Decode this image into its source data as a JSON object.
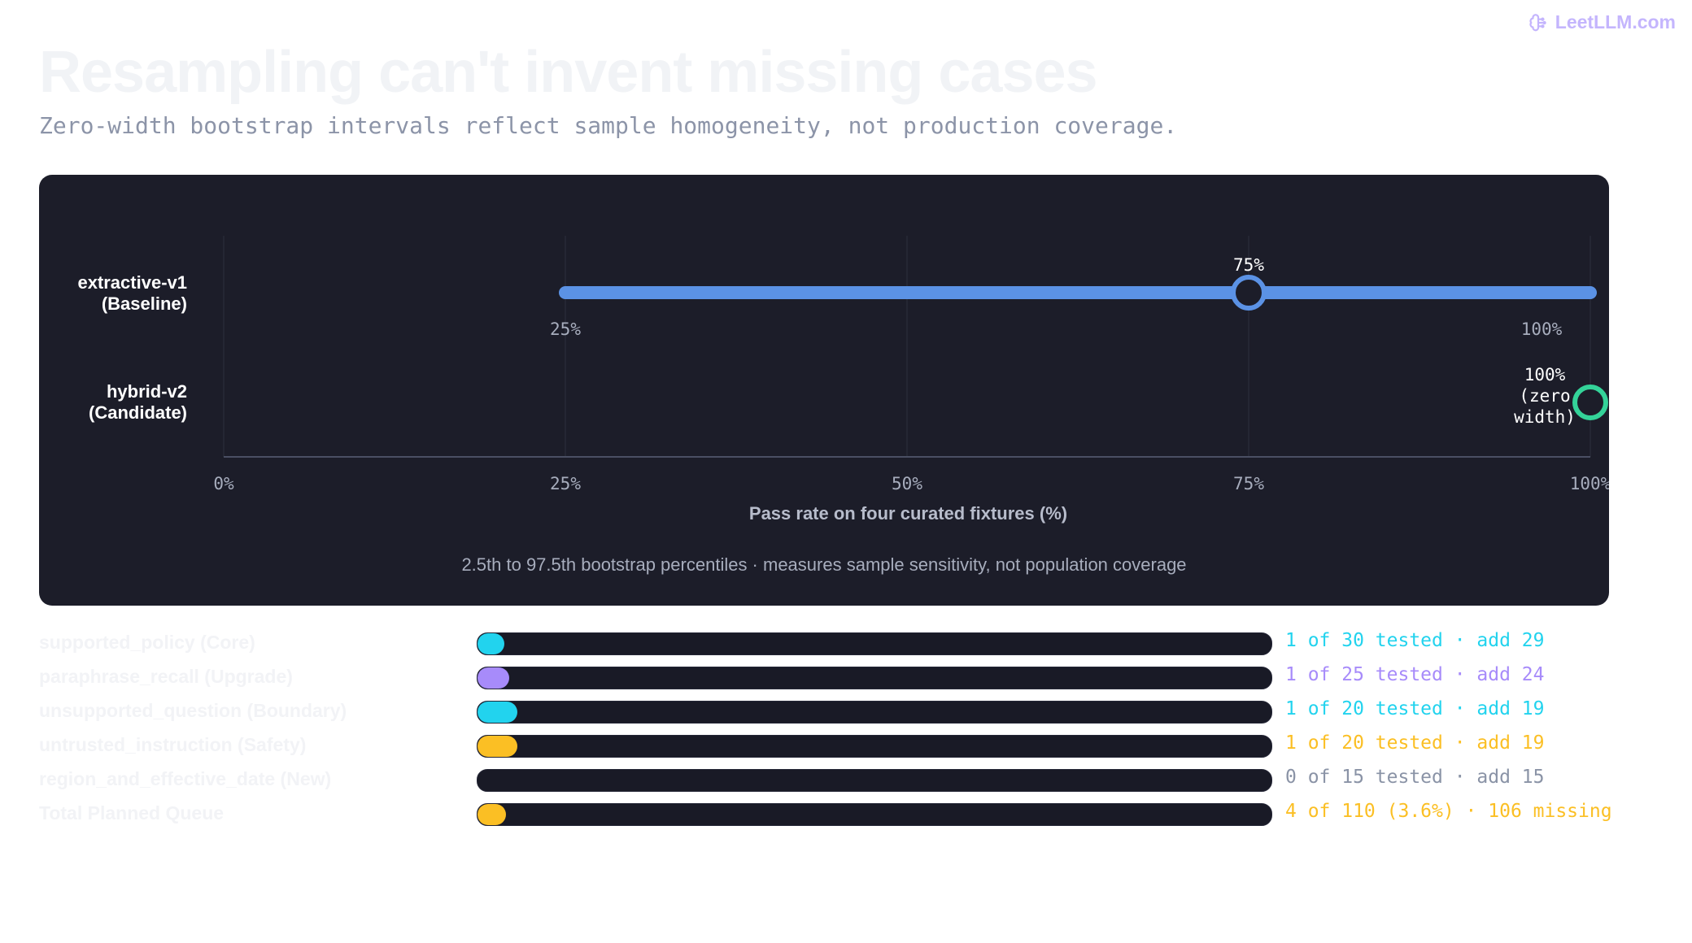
{
  "brand": {
    "name": "LeetLLM.com",
    "icon": "brain-icon",
    "color": "#c4b5fd"
  },
  "header": {
    "title": "Resampling can't invent missing cases",
    "subtitle": "Zero-width bootstrap intervals reflect sample homogeneity, not production coverage."
  },
  "chart_data": [
    {
      "type": "interval",
      "title": "",
      "xlabel": "Pass rate on four curated fixtures (%)",
      "xlim": [
        0,
        100
      ],
      "xticks": [
        "0%",
        "25%",
        "50%",
        "75%",
        "100%"
      ],
      "xtick_values": [
        0,
        25,
        50,
        75,
        100
      ],
      "grid": true,
      "rows": [
        {
          "label_line1": "extractive-v1",
          "label_line2": "(Baseline)",
          "point": 75,
          "point_label": "75%",
          "low": 25,
          "high": 100,
          "low_label": "25%",
          "high_label": "100%",
          "color": "#5b92e5"
        },
        {
          "label_line1": "hybrid-v2",
          "label_line2": "(Candidate)",
          "point": 100,
          "point_label_lines": [
            "100%",
            "(zero",
            "width)"
          ],
          "low": 100,
          "high": 100,
          "color": "#34d399"
        }
      ],
      "footnote": "2.5th to 97.5th  bootstrap percentiles · measures sample sensitivity, not population coverage"
    },
    {
      "type": "bar",
      "orientation": "horizontal",
      "categories": [
        "supported_policy (Core)",
        "paraphrase_recall (Upgrade)",
        "unsupported_question (Boundary)",
        "untrusted_instruction (Safety)",
        "region_and_effective_date (New)",
        "Total Planned Queue"
      ],
      "values": [
        1,
        1,
        1,
        1,
        0,
        4
      ],
      "totals": [
        30,
        25,
        20,
        20,
        15,
        110
      ],
      "notes": [
        "1 of 30 tested · add 29",
        "1 of 25 tested · add 24",
        "1 of 20 tested · add 19",
        "1 of 20 tested · add 19",
        "0 of 15 tested · add 15",
        "4 of 110 (3.6%) · 106 missing"
      ],
      "colors": [
        "#22d3ee",
        "#a78bfa",
        "#22d3ee",
        "#fbbf24",
        "#8a93a6",
        "#fbbf24"
      ]
    }
  ],
  "colors": {
    "panel": "#1c1d29",
    "grid": "#2b2e3d",
    "track": "#191a26"
  }
}
